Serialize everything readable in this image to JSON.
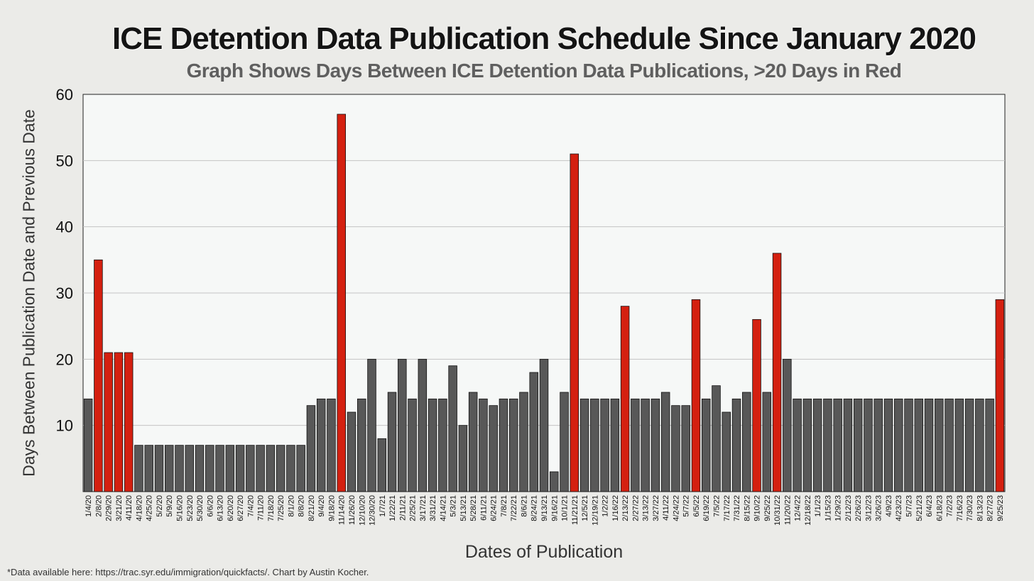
{
  "chart_data": {
    "type": "bar",
    "title": "ICE Detention Data Publication Schedule Since January 2020",
    "subtitle": "Graph Shows Days Between ICE Detention Data Publications, >20 Days in Red",
    "xlabel": "Dates of Publication",
    "ylabel": "Days Between Publication Date and Previous Date",
    "ylim": [
      0,
      60
    ],
    "yticks": [
      10,
      20,
      30,
      40,
      50,
      60
    ],
    "grid": "horizontal",
    "threshold": 20,
    "colors": {
      "normal": "#585858",
      "highlight": "#d42010",
      "plot_bg": "#f6f8f7",
      "grid": "#c4c4c4"
    },
    "tick_labels": [
      "1/4/20",
      "2/8/20",
      "2/29/20",
      "3/21/20",
      "4/11/20",
      "4/18/20",
      "4/25/20",
      "5/2/20",
      "5/9/20",
      "5/16/20",
      "5/23/20",
      "5/30/20",
      "6/6/20",
      "6/13/20",
      "6/20/20",
      "6/27/20",
      "7/4/20",
      "7/11/20",
      "7/18/20",
      "7/25/20",
      "8/1/20",
      "8/8/20",
      "8/21/20",
      "9/4/20",
      "9/18/20",
      "11/14/20",
      "11/26/20",
      "12/10/20",
      "12/30/20",
      "1/7/21",
      "1/22/21",
      "2/11/21",
      "2/25/21",
      "3/17/21",
      "3/31/21",
      "4/14/21",
      "5/3/21",
      "5/13/21",
      "5/28/21",
      "6/11/21",
      "6/24/21",
      "7/8/21",
      "7/22/21",
      "8/6/21",
      "8/24/21",
      "9/13/21",
      "9/16/21",
      "10/1/21",
      "11/21/21",
      "12/5/21",
      "12/19/21",
      "1/2/22",
      "1/16/22",
      "2/13/22",
      "2/27/22",
      "3/13/22",
      "3/27/22",
      "4/11/22",
      "4/24/22",
      "5/7/22",
      "6/5/22",
      "6/19/22",
      "7/5/22",
      "7/17/22",
      "7/31/22",
      "8/15/22",
      "9/10/22",
      "9/25/22",
      "10/31/22",
      "11/20/22",
      "12/4/22",
      "12/18/22",
      "1/1/23",
      "1/15/23",
      "1/29/23",
      "2/12/23",
      "2/26/23",
      "3/12/23",
      "3/26/23",
      "4/9/23",
      "4/23/23",
      "5/7/23",
      "5/21/23",
      "6/4/23",
      "6/18/23",
      "7/2/23",
      "7/16/23",
      "7/30/23",
      "8/13/23",
      "8/27/23",
      "9/25/23"
    ],
    "values": [
      14,
      35,
      21,
      21,
      21,
      7,
      7,
      7,
      7,
      7,
      7,
      7,
      7,
      7,
      7,
      7,
      7,
      7,
      7,
      7,
      7,
      7,
      13,
      14,
      14,
      57,
      12,
      14,
      20,
      8,
      15,
      20,
      14,
      20,
      14,
      14,
      19,
      10,
      15,
      14,
      13,
      14,
      14,
      15,
      18,
      20,
      3,
      15,
      51,
      14,
      14,
      14,
      14,
      28,
      14,
      14,
      14,
      15,
      13,
      13,
      29,
      14,
      16,
      12,
      14,
      15,
      26,
      15,
      36,
      20,
      14,
      14,
      14,
      14,
      14,
      14,
      14,
      14,
      14,
      14,
      14,
      14,
      14,
      14,
      14,
      14,
      14,
      14,
      14,
      14,
      29
    ]
  },
  "footnote": "*Data available here: https://trac.syr.edu/immigration/quickfacts/. Chart by Austin Kocher."
}
